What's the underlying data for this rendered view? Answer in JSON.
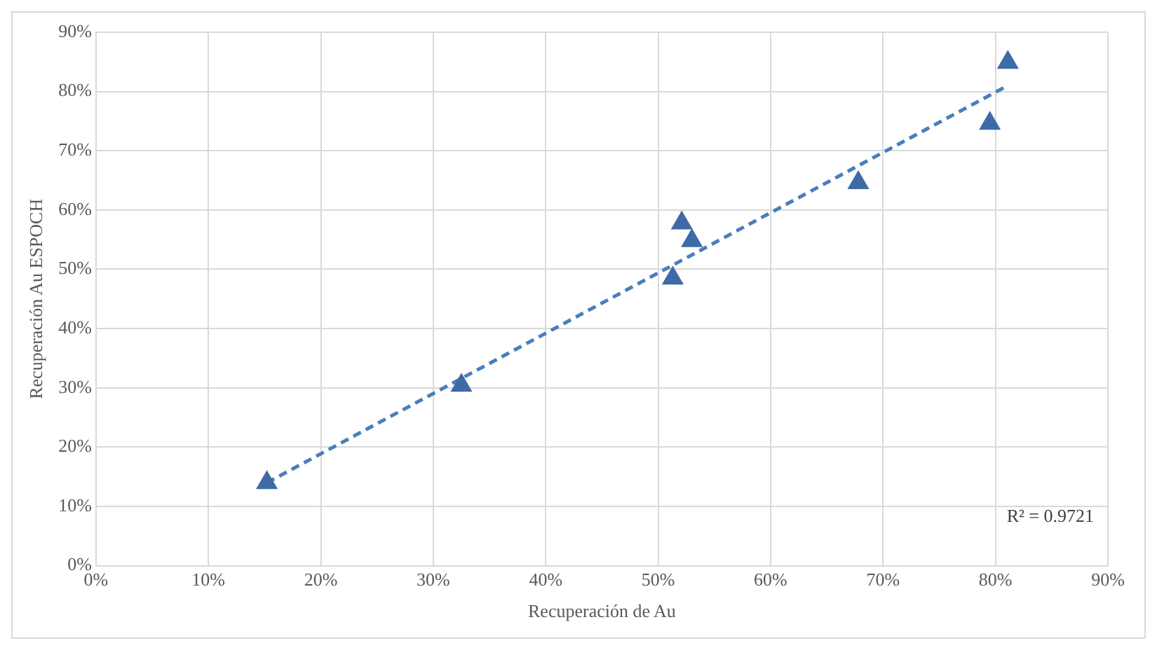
{
  "chart_data": {
    "type": "scatter",
    "xlabel": "Recuperación de Au",
    "ylabel": "Recuperación Au ESPOCH",
    "xlim": [
      0,
      90
    ],
    "ylim": [
      0,
      90
    ],
    "xticks": [
      {
        "value": 0,
        "label": "0%"
      },
      {
        "value": 10,
        "label": "10%"
      },
      {
        "value": 20,
        "label": "20%"
      },
      {
        "value": 30,
        "label": "30%"
      },
      {
        "value": 40,
        "label": "40%"
      },
      {
        "value": 50,
        "label": "50%"
      },
      {
        "value": 60,
        "label": "60%"
      },
      {
        "value": 70,
        "label": "70%"
      },
      {
        "value": 80,
        "label": "80%"
      },
      {
        "value": 90,
        "label": "90%"
      }
    ],
    "yticks": [
      {
        "value": 0,
        "label": "0%"
      },
      {
        "value": 10,
        "label": "10%"
      },
      {
        "value": 20,
        "label": "20%"
      },
      {
        "value": 30,
        "label": "30%"
      },
      {
        "value": 40,
        "label": "40%"
      },
      {
        "value": 50,
        "label": "50%"
      },
      {
        "value": 60,
        "label": "60%"
      },
      {
        "value": 70,
        "label": "70%"
      },
      {
        "value": 80,
        "label": "80%"
      },
      {
        "value": 90,
        "label": "90%"
      }
    ],
    "grid": true,
    "legend": false,
    "marker": "triangle",
    "series": [
      {
        "type": "scatter",
        "color": "#3f6aa8",
        "x": [
          15.2,
          32.5,
          52.1,
          53.0,
          51.3,
          67.8,
          79.5,
          81.1
        ],
        "values": [
          14,
          30.4,
          57.8,
          54.8,
          48.5,
          64.6,
          74.6,
          84.9
        ]
      },
      {
        "type": "line",
        "color": "#4a7ebb",
        "line_style": "dashed",
        "marker": "none",
        "x": [
          15.2,
          81.1
        ],
        "values": [
          14,
          81
        ]
      }
    ],
    "annotations": [
      "R² = 0.9721"
    ]
  }
}
